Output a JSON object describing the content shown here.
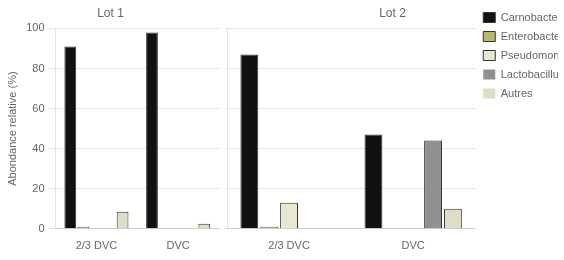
{
  "chart_data": [
    {
      "type": "bar",
      "title": "Lot 1",
      "ylabel": "Abondance relative (%)",
      "categories": [
        "2/3 DVC",
        "DVC"
      ],
      "series": [
        {
          "name": "Carnobacterium",
          "color": "#111111",
          "values": [
            91,
            98
          ]
        },
        {
          "name": "Enterobacteriaceae",
          "color": "#b8b870",
          "values": [
            1,
            0
          ]
        },
        {
          "name": "Pseudomonas",
          "color": "#e8e8d0",
          "values": [
            0,
            0
          ]
        },
        {
          "name": "Lactobacillus",
          "color": "#909090",
          "values": [
            0,
            0
          ]
        },
        {
          "name": "Autres",
          "color": "#ddddc8",
          "values": [
            8.5,
            2.5
          ]
        }
      ],
      "ylim": [
        0,
        100
      ],
      "yticks": [
        0,
        20,
        40,
        60,
        80,
        100
      ],
      "grid": true
    },
    {
      "type": "bar",
      "title": "Lot 2",
      "categories": [
        "2/3 DVC",
        "DVC"
      ],
      "series": [
        {
          "name": "Carnobacterium",
          "color": "#111111",
          "values": [
            87,
            47
          ]
        },
        {
          "name": "Enterobacteriaceae",
          "color": "#b8b870",
          "values": [
            1,
            0
          ]
        },
        {
          "name": "Pseudomonas",
          "color": "#e8e8d0",
          "values": [
            13,
            0
          ]
        },
        {
          "name": "Lactobacillus",
          "color": "#909090",
          "values": [
            0,
            44
          ]
        },
        {
          "name": "Autres",
          "color": "#ddddc8",
          "values": [
            0,
            10
          ]
        }
      ],
      "ylim": [
        0,
        100
      ],
      "yticks": [
        0,
        20,
        40,
        60,
        80,
        100
      ],
      "grid": true,
      "tick_labels": "x",
      "legend": "right"
    }
  ]
}
